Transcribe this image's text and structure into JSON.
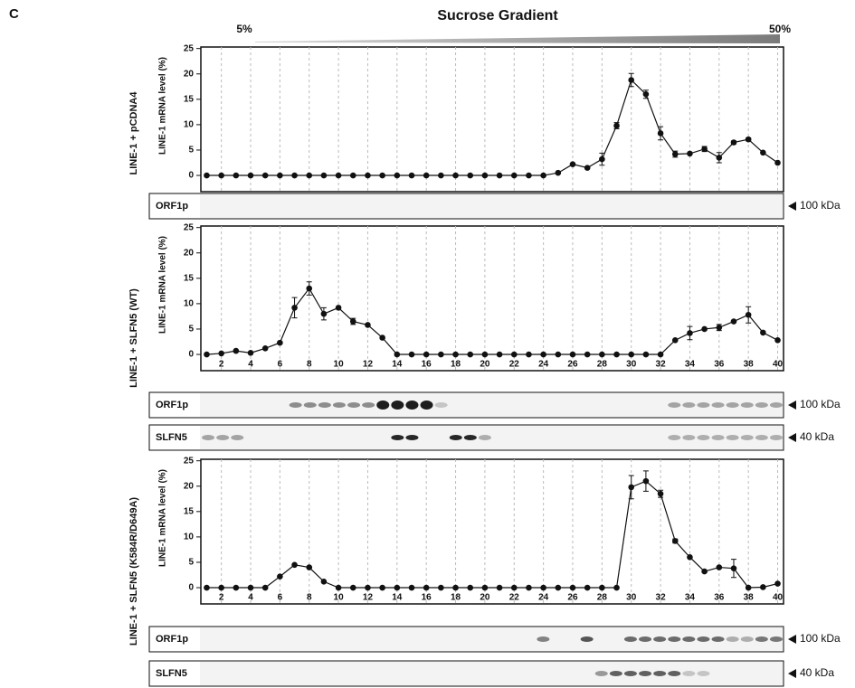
{
  "panel_label": "C",
  "header": {
    "title": "Sucrose Gradient",
    "low": "5%",
    "high": "50%"
  },
  "chart_data": [
    {
      "type": "line",
      "group_label": "LINE-1 + pCDNA4",
      "ylabel": "LINE-1 mRNA level (%)",
      "color": "#111111",
      "grid": true,
      "xtick_labels": false,
      "x": [
        1,
        2,
        3,
        4,
        5,
        6,
        7,
        8,
        9,
        10,
        11,
        12,
        13,
        14,
        15,
        16,
        17,
        18,
        19,
        20,
        21,
        22,
        23,
        24,
        25,
        26,
        27,
        28,
        29,
        30,
        31,
        32,
        33,
        34,
        35,
        36,
        37,
        38,
        39,
        40
      ],
      "values": [
        0,
        0,
        0,
        0,
        0,
        0,
        0,
        0,
        0,
        0,
        0,
        0,
        0,
        0,
        0,
        0,
        0,
        0,
        0,
        0,
        0,
        0,
        0,
        0,
        0.5,
        2.2,
        1.5,
        3.2,
        9.8,
        18.8,
        16,
        8.3,
        4.2,
        4.3,
        5.2,
        3.5,
        6.5,
        7.1,
        4.5,
        2.5
      ],
      "errors": [
        null,
        null,
        null,
        null,
        null,
        null,
        null,
        null,
        null,
        null,
        null,
        null,
        null,
        null,
        null,
        null,
        null,
        null,
        null,
        null,
        null,
        null,
        null,
        null,
        null,
        null,
        null,
        1.2,
        0.6,
        1.3,
        0.8,
        1.3,
        0.6,
        null,
        0.5,
        1.0,
        0.3,
        0.3,
        null,
        null
      ],
      "ylim": [
        -3.2,
        25.3
      ],
      "yticks": [
        0,
        5,
        10,
        15,
        20,
        25
      ],
      "xlim": [
        0.6,
        40.4
      ],
      "xticks": [
        2,
        4,
        6,
        8,
        10,
        12,
        14,
        16,
        18,
        20,
        22,
        24,
        26,
        28,
        30,
        32,
        34,
        36,
        38,
        40
      ],
      "blots": [
        {
          "label": "ORF1p",
          "size": "100 kDa"
        }
      ]
    },
    {
      "type": "line",
      "group_label": "LINE-1 + SLFN5 (WT)",
      "ylabel": "LINE-1 mRNA level (%)",
      "color": "#111111",
      "grid": true,
      "xtick_labels": true,
      "x": [
        1,
        2,
        3,
        4,
        5,
        6,
        7,
        8,
        9,
        10,
        11,
        12,
        13,
        14,
        15,
        16,
        17,
        18,
        19,
        20,
        21,
        22,
        23,
        24,
        25,
        26,
        27,
        28,
        29,
        30,
        31,
        32,
        33,
        34,
        35,
        36,
        37,
        38,
        39,
        40
      ],
      "values": [
        0,
        0.2,
        0.7,
        0.3,
        1.2,
        2.3,
        9.2,
        13,
        8,
        9.2,
        6.5,
        5.8,
        3.3,
        0,
        0,
        0,
        0,
        0,
        0,
        0,
        0,
        0,
        0,
        0,
        0,
        0,
        0,
        0,
        0,
        0,
        0,
        0,
        2.8,
        4.2,
        5.0,
        5.3,
        6.5,
        7.8,
        4.3,
        2.8
      ],
      "errors": [
        null,
        null,
        null,
        null,
        null,
        null,
        2.0,
        1.3,
        1.2,
        null,
        0.6,
        null,
        null,
        null,
        null,
        null,
        null,
        null,
        null,
        null,
        null,
        null,
        null,
        null,
        null,
        null,
        null,
        null,
        null,
        null,
        null,
        null,
        null,
        1.3,
        null,
        0.6,
        null,
        1.6,
        null,
        null
      ],
      "ylim": [
        -3.2,
        25.3
      ],
      "yticks": [
        0,
        5,
        10,
        15,
        20,
        25
      ],
      "xlim": [
        0.6,
        40.4
      ],
      "xticks": [
        2,
        4,
        6,
        8,
        10,
        12,
        14,
        16,
        18,
        20,
        22,
        24,
        26,
        28,
        30,
        32,
        34,
        36,
        38,
        40
      ],
      "blots": [
        {
          "label": "ORF1p",
          "size": "100 kDa"
        },
        {
          "label": "SLFN5",
          "size": "40 kDa"
        }
      ]
    },
    {
      "type": "line",
      "group_label": "LINE-1 + SLFN5 (K584R/D649A)",
      "ylabel": "LINE-1 mRNA level (%)",
      "color": "#111111",
      "grid": true,
      "xtick_labels": true,
      "x": [
        1,
        2,
        3,
        4,
        5,
        6,
        7,
        8,
        9,
        10,
        11,
        12,
        13,
        14,
        15,
        16,
        17,
        18,
        19,
        20,
        21,
        22,
        23,
        24,
        25,
        26,
        27,
        28,
        29,
        30,
        31,
        32,
        33,
        34,
        35,
        36,
        37,
        38,
        39,
        40
      ],
      "values": [
        0,
        0,
        0,
        0,
        0,
        2.2,
        4.5,
        4.0,
        1.2,
        0,
        0,
        0,
        0,
        0,
        0,
        0,
        0,
        0,
        0,
        0,
        0,
        0,
        0,
        0,
        0,
        0,
        0,
        0,
        0,
        19.8,
        21,
        18.5,
        9.2,
        6,
        3.2,
        4,
        3.8,
        0,
        0.1,
        0.8
      ],
      "errors": [
        null,
        null,
        null,
        null,
        null,
        null,
        null,
        null,
        null,
        null,
        null,
        null,
        null,
        null,
        null,
        null,
        null,
        null,
        null,
        null,
        null,
        null,
        null,
        null,
        null,
        null,
        null,
        null,
        null,
        2.3,
        2.0,
        0.7,
        0.4,
        null,
        null,
        null,
        1.8,
        null,
        null,
        null
      ],
      "ylim": [
        -3.2,
        25.3
      ],
      "yticks": [
        0,
        5,
        10,
        15,
        20,
        25
      ],
      "xlim": [
        0.6,
        40.4
      ],
      "xticks": [
        2,
        4,
        6,
        8,
        10,
        12,
        14,
        16,
        18,
        20,
        22,
        24,
        26,
        28,
        30,
        32,
        34,
        36,
        38,
        40
      ],
      "blots": [
        {
          "label": "ORF1p",
          "size": "100 kDa"
        },
        {
          "label": "SLFN5",
          "size": "40 kDa"
        }
      ]
    }
  ]
}
